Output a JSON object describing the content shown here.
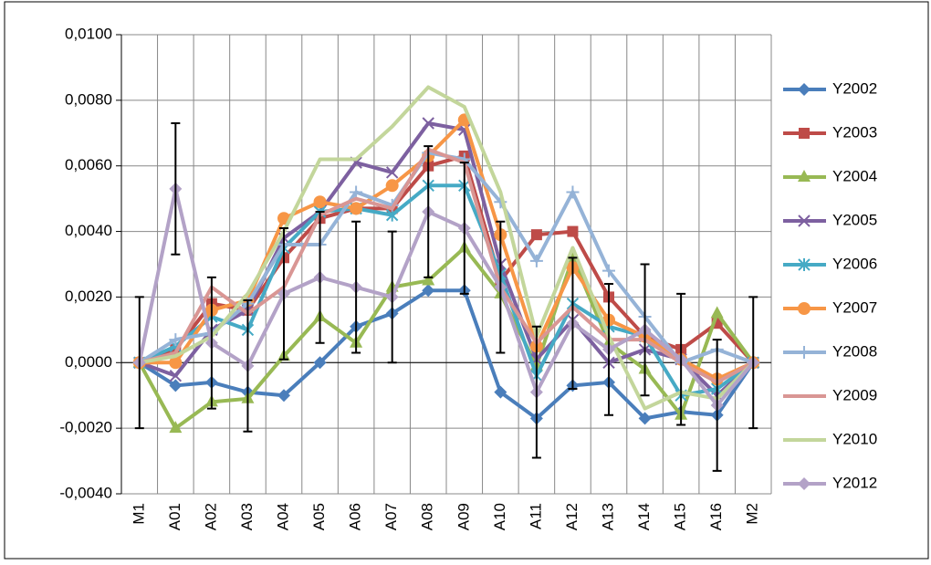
{
  "chart_data": {
    "type": "line",
    "categories": [
      "M1",
      "A01",
      "A02",
      "A03",
      "A04",
      "A05",
      "A06",
      "A07",
      "A08",
      "A09",
      "A10",
      "A11",
      "A12",
      "A13",
      "A14",
      "A15",
      "A16",
      "M2"
    ],
    "ylim": [
      -0.004,
      0.01
    ],
    "yticks": [
      {
        "value": -0.004,
        "label": "-0,0040"
      },
      {
        "value": -0.002,
        "label": "-0,0020"
      },
      {
        "value": 0,
        "label": "0,0000"
      },
      {
        "value": 0.002,
        "label": "0,0020"
      },
      {
        "value": 0.004,
        "label": "0,0040"
      },
      {
        "value": 0.006,
        "label": "0,0060"
      },
      {
        "value": 0.008,
        "label": "0,0080"
      },
      {
        "value": 0.01,
        "label": "0,0100"
      }
    ],
    "grid": true,
    "legend": "right",
    "series": [
      {
        "name": "Y2002",
        "color": "#4a7ebb",
        "marker": "diamond",
        "values": [
          0,
          -0.0007,
          -0.0006,
          -0.0009,
          -0.001,
          0.0,
          0.0011,
          0.0015,
          0.0022,
          0.0022,
          -0.0009,
          -0.0017,
          -0.0007,
          -0.0006,
          -0.0017,
          -0.0015,
          -0.0016,
          0
        ]
      },
      {
        "name": "Y2003",
        "color": "#be4b48",
        "marker": "square",
        "values": [
          0,
          0.0004,
          0.0018,
          0.0016,
          0.0032,
          0.0044,
          0.0047,
          0.0047,
          0.006,
          0.0063,
          0.0025,
          0.0039,
          0.004,
          0.002,
          0.0008,
          0.0004,
          0.0012,
          0
        ]
      },
      {
        "name": "Y2004",
        "color": "#98b954",
        "marker": "triangle",
        "values": [
          0,
          -0.002,
          -0.0012,
          -0.0011,
          0.0002,
          0.0014,
          0.0006,
          0.0023,
          0.0025,
          0.0035,
          0.0021,
          -0.0001,
          0.0032,
          0.0006,
          -0.0002,
          -0.0016,
          0.0015,
          0
        ]
      },
      {
        "name": "Y2005",
        "color": "#7d60a0",
        "marker": "x",
        "values": [
          0,
          -0.0004,
          0.001,
          0.0016,
          0.0038,
          0.0046,
          0.0061,
          0.0058,
          0.0073,
          0.0071,
          0.003,
          0.0001,
          0.0013,
          0.0,
          0.0004,
          0.0001,
          -0.001,
          0
        ]
      },
      {
        "name": "Y2006",
        "color": "#46aac5",
        "marker": "star",
        "values": [
          0,
          0.0005,
          0.0014,
          0.001,
          0.0035,
          0.0046,
          0.0047,
          0.0045,
          0.0054,
          0.0054,
          0.0027,
          -0.0004,
          0.0018,
          0.0011,
          0.0008,
          -0.001,
          -0.0008,
          0
        ]
      },
      {
        "name": "Y2007",
        "color": "#f79646",
        "marker": "circle",
        "values": [
          0,
          0.0,
          0.0016,
          0.0019,
          0.0044,
          0.0049,
          0.0047,
          0.0054,
          0.0063,
          0.0074,
          0.0039,
          0.0005,
          0.0029,
          0.0013,
          0.0008,
          0.0001,
          -0.0005,
          0
        ]
      },
      {
        "name": "Y2008",
        "color": "#95b3d7",
        "marker": "plus",
        "values": [
          0,
          0.0007,
          0.0009,
          0.0018,
          0.0036,
          0.0036,
          0.0052,
          0.0048,
          0.0064,
          0.0062,
          0.0049,
          0.0031,
          0.0052,
          0.0028,
          0.0014,
          0.0,
          0.0004,
          0
        ]
      },
      {
        "name": "Y2009",
        "color": "#d99694",
        "marker": "none",
        "values": [
          0,
          0.0003,
          0.0023,
          0.0015,
          0.0023,
          0.0045,
          0.005,
          0.0047,
          0.0065,
          0.0061,
          0.0023,
          0.0006,
          0.0017,
          0.0007,
          0.0007,
          0.0,
          -0.0006,
          0
        ]
      },
      {
        "name": "Y2010",
        "color": "#c3d69b",
        "marker": "none",
        "values": [
          0,
          0.0002,
          0.0008,
          0.0021,
          0.004,
          0.0062,
          0.0062,
          0.0072,
          0.0084,
          0.0078,
          0.0052,
          0.0008,
          0.0035,
          0.0008,
          -0.0014,
          -0.0009,
          -0.0011,
          0
        ]
      },
      {
        "name": "Y2012",
        "color": "#b3a2c7",
        "marker": "diamond",
        "values": [
          0,
          0.0053,
          0.0006,
          -0.0001,
          0.0021,
          0.0026,
          0.0023,
          0.002,
          0.0046,
          0.0041,
          0.0023,
          -0.0009,
          0.0012,
          0.0004,
          0.001,
          0.0001,
          -0.0013,
          0
        ],
        "error": [
          0.002,
          0.002,
          0.002,
          0.002,
          0.002,
          0.002,
          0.002,
          0.002,
          0.002,
          0.002,
          0.002,
          0.002,
          0.002,
          0.002,
          0.002,
          0.002,
          0.002,
          0.002
        ]
      }
    ]
  }
}
